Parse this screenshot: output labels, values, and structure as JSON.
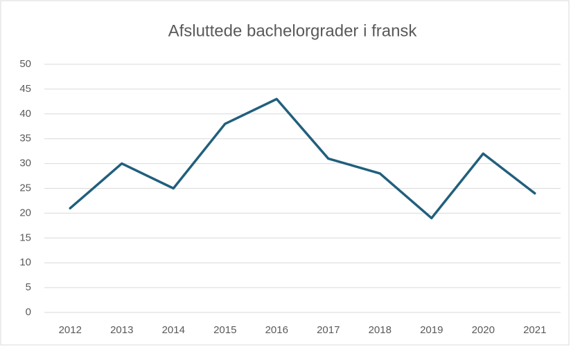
{
  "chart_data": {
    "type": "line",
    "title": "Afsluttede bachelorgrader i fransk",
    "categories": [
      "2012",
      "2013",
      "2014",
      "2015",
      "2016",
      "2017",
      "2018",
      "2019",
      "2020",
      "2021"
    ],
    "values": [
      21,
      30,
      25,
      38,
      43,
      31,
      28,
      19,
      32,
      24
    ],
    "color": "#215f7d",
    "ylim": [
      0,
      50
    ],
    "yticks": [
      0,
      5,
      10,
      15,
      20,
      25,
      30,
      35,
      40,
      45,
      50
    ],
    "grid": true
  }
}
